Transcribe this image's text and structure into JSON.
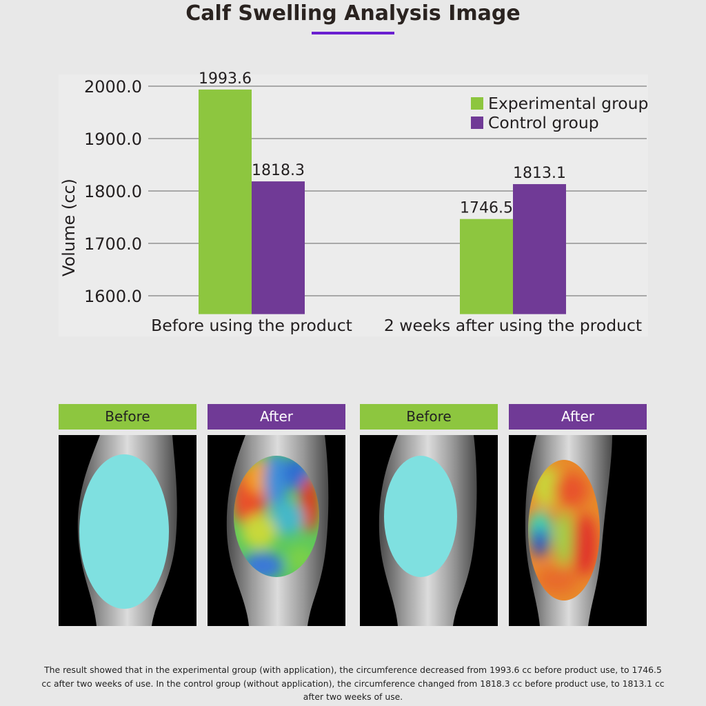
{
  "title": "Calf Swelling Analysis Image",
  "colors": {
    "accent": "#6a1fd0",
    "experimental": "#8dc63f",
    "control": "#703a96"
  },
  "chart_data": {
    "type": "bar",
    "categories": [
      "Before using the product",
      "2 weeks after using the product"
    ],
    "series": [
      {
        "name": "Experimental group",
        "values": [
          1993.6,
          1746.5
        ],
        "labels": [
          "1993.6",
          "1746.5"
        ]
      },
      {
        "name": "Control group",
        "values": [
          1818.3,
          1813.1
        ],
        "labels": [
          "1818.3",
          "1813.1"
        ]
      }
    ],
    "ylabel": "Volume (cc)",
    "yticks": [
      "1600.0",
      "1700.0",
      "1800.0",
      "1900.0",
      "2000.0"
    ],
    "ylim": [
      1565,
      2000
    ],
    "grid": true,
    "legend": "top-right"
  },
  "panels": [
    {
      "label": "Before",
      "kind": "before"
    },
    {
      "label": "After",
      "kind": "after"
    },
    {
      "label": "Before",
      "kind": "before"
    },
    {
      "label": "After",
      "kind": "after"
    }
  ],
  "caption": "The result showed that in the experimental group (with application), the circumference decreased from 1993.6 cc before product use, to 1746.5 cc after two weeks of use. In the control group (without application), the circumference changed from 1818.3 cc before product use, to 1813.1 cc after two weeks of use."
}
